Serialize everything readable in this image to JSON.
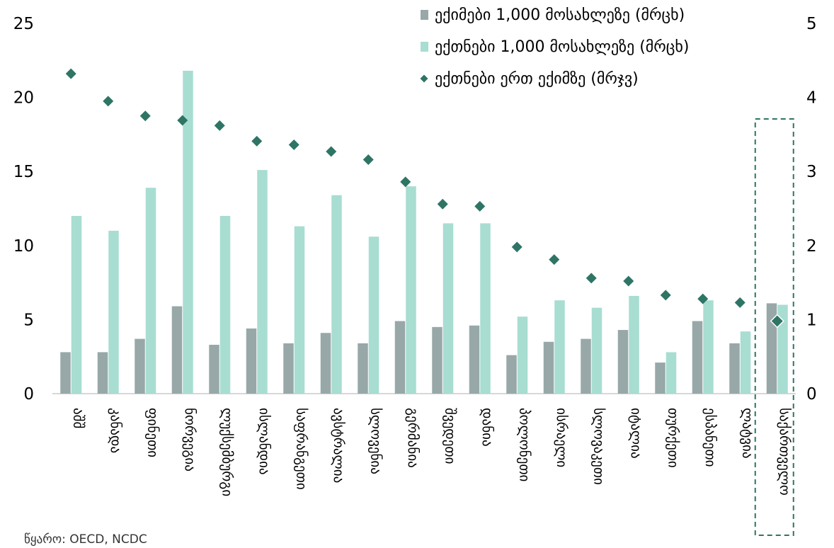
{
  "chart_data": {
    "type": "bar",
    "categories": [
      "აშშ",
      "კანადა",
      "ფინეთი",
      "ნორვეგია",
      "ლუქსემბურგი",
      "ისლანდია",
      "საფრანგეთი",
      "ავსტრალია",
      "სლოვენია",
      "გერმანია",
      "შვედეთი",
      "დანია",
      "პოლონეთი",
      "ისრაელი",
      "სლოვაკეთი",
      "იტალია",
      "თურქეთი",
      "ესპანეთი",
      "ლატვია",
      "საქართველო"
    ],
    "series": [
      {
        "name": "ექიმები 1,000 მოსახლეზე (მრცხ)",
        "axis": "left",
        "kind": "bar",
        "color": "#98a8a8",
        "values": [
          2.8,
          2.8,
          3.7,
          5.9,
          3.3,
          4.4,
          3.4,
          4.1,
          3.4,
          4.9,
          4.5,
          4.6,
          2.6,
          3.5,
          3.7,
          4.3,
          2.1,
          4.9,
          3.4,
          6.1
        ]
      },
      {
        "name": "ექთნები 1,000 მოსახლეზე (მრცხ)",
        "axis": "left",
        "kind": "bar",
        "color": "#a8ddd2",
        "values": [
          12.0,
          11.0,
          13.9,
          21.8,
          12.0,
          15.1,
          11.3,
          13.4,
          10.6,
          14.0,
          11.5,
          11.5,
          5.2,
          6.3,
          5.8,
          6.6,
          2.8,
          6.3,
          4.2,
          6.0
        ]
      },
      {
        "name": "ექთნები ერთ ექიმზე (მრჯვ)",
        "axis": "right",
        "kind": "marker",
        "color": "#2e7565",
        "values": [
          4.32,
          3.95,
          3.75,
          3.69,
          3.62,
          3.41,
          3.36,
          3.27,
          3.16,
          2.86,
          2.56,
          2.53,
          1.98,
          1.81,
          1.56,
          1.52,
          1.33,
          1.28,
          1.23,
          0.98
        ]
      }
    ],
    "yaxis_left": {
      "min": 0,
      "max": 25,
      "ticks": [
        "0",
        "5",
        "10",
        "15",
        "20",
        "25"
      ]
    },
    "yaxis_right": {
      "min": 0,
      "max": 5,
      "ticks": [
        "0",
        "1",
        "2",
        "3",
        "4",
        "5"
      ]
    },
    "grid": false,
    "legend_position": "top-right",
    "highlight_category": "საქართველო"
  },
  "source": "წყარო: OECD, NCDC"
}
